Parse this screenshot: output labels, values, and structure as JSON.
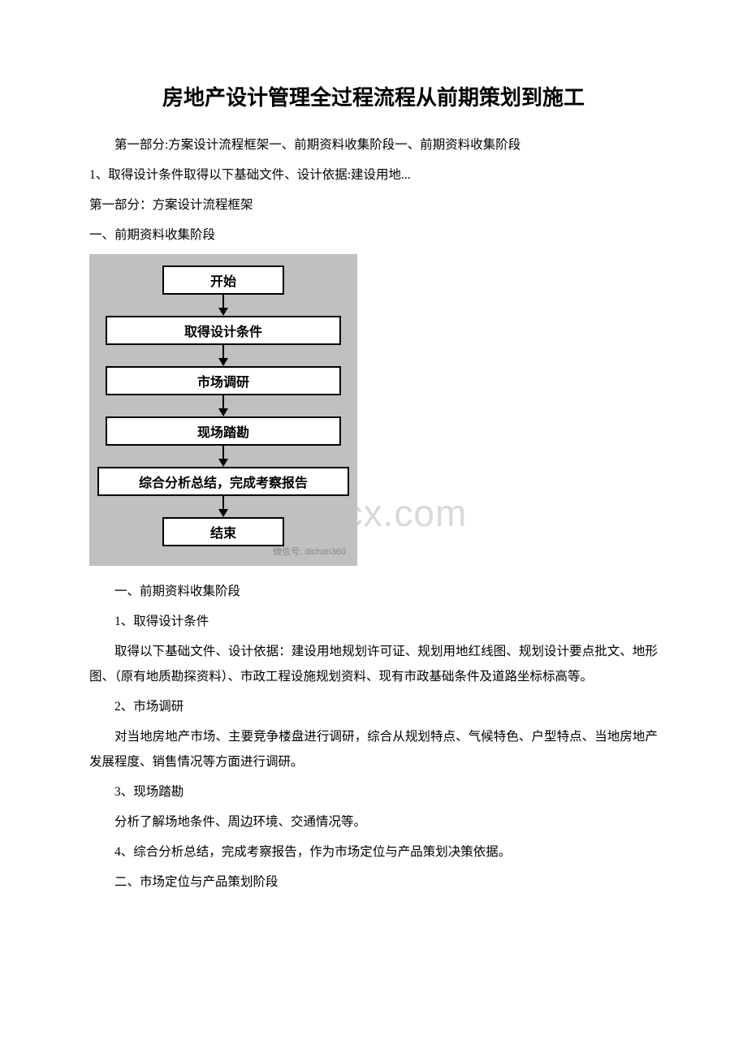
{
  "title": "房地产设计管理全过程流程从前期策划到施工",
  "watermark": "www.bdocx.com",
  "intro": {
    "line1": "第一部分:方案设计流程框架一、前期资料收集阶段一、前期资料收集阶段",
    "line2": "1、取得设计条件取得以下基础文件、设计依据:建设用地...",
    "line3": "第一部分：方案设计流程框架",
    "line4": "一、前期资料收集阶段"
  },
  "flowchart": {
    "background_color": "#c0c0c0",
    "box_bg": "#ffffff",
    "box_border": "#000000",
    "arrow_color": "#000000",
    "nodes": [
      {
        "label": "开始",
        "width": "narrow"
      },
      {
        "label": "取得设计条件",
        "width": "wide"
      },
      {
        "label": "市场调研",
        "width": "wide"
      },
      {
        "label": "现场踏勘",
        "width": "wide"
      },
      {
        "label": "综合分析总结，完成考察报告",
        "width": "xwide"
      },
      {
        "label": "结束",
        "width": "narrow"
      }
    ],
    "footer": "微信号: dichan360"
  },
  "body": {
    "s1_heading": "一、前期资料收集阶段",
    "s1_1_title": "1、取得设计条件",
    "s1_1_body": "取得以下基础文件、设计依据：建设用地规划许可证、规划用地红线图、规划设计要点批文、地形图、（原有地质勘探资料）、市政工程设施规划资料、现有市政基础条件及道路坐标标高等。",
    "s1_2_title": "2、市场调研",
    "s1_2_body": "对当地房地产市场、主要竞争楼盘进行调研，综合从规划特点、气候特色、户型特点、当地房地产发展程度、销售情况等方面进行调研。",
    "s1_3_title": "3、现场踏勘",
    "s1_3_body": "分析了解场地条件、周边环境、交通情况等。",
    "s1_4_title": "4、综合分析总结，完成考察报告，作为市场定位与产品策划决策依据。",
    "s2_heading": "二、市场定位与产品策划阶段"
  }
}
